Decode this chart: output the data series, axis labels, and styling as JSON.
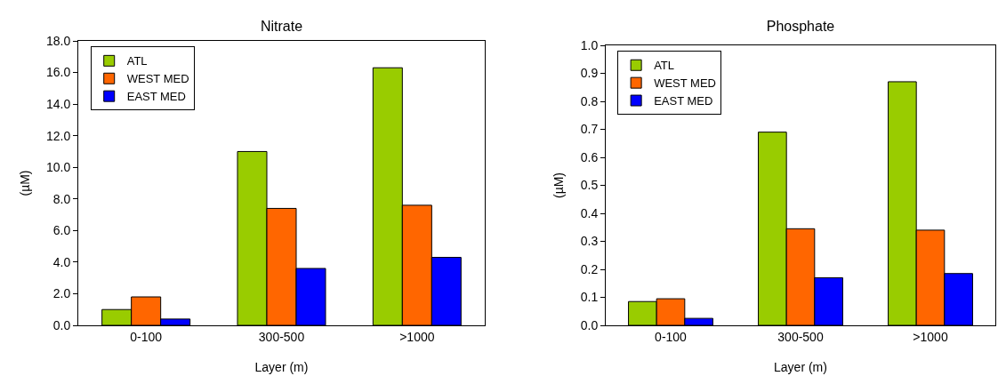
{
  "chart_data": [
    {
      "type": "bar",
      "title": "Nitrate",
      "xlabel": "Layer (m)",
      "ylabel": "(µM)",
      "categories": [
        "0-100",
        "300-500",
        ">1000"
      ],
      "series": [
        {
          "name": "ATL",
          "color": "#99cc00",
          "values": [
            1.0,
            11.0,
            16.3
          ]
        },
        {
          "name": "WEST MED",
          "color": "#ff6600",
          "values": [
            1.8,
            7.4,
            7.6
          ]
        },
        {
          "name": "EAST MED",
          "color": "#0000ff",
          "values": [
            0.4,
            3.6,
            4.3
          ]
        }
      ],
      "ylim": [
        0,
        18
      ],
      "yticks": [
        {
          "value": 0,
          "label": "0.0"
        },
        {
          "value": 2,
          "label": "2.0"
        },
        {
          "value": 4,
          "label": "4.0"
        },
        {
          "value": 6,
          "label": "6.0"
        },
        {
          "value": 8,
          "label": "8.0"
        },
        {
          "value": 10,
          "label": "10.0"
        },
        {
          "value": 12,
          "label": "12.0"
        },
        {
          "value": 14,
          "label": "14.0"
        },
        {
          "value": 16,
          "label": "16.0"
        },
        {
          "value": 18,
          "label": "18.0"
        }
      ],
      "grid": false,
      "legend": "top left"
    },
    {
      "type": "bar",
      "title": "Phosphate",
      "xlabel": "Layer (m)",
      "ylabel": "(µM)",
      "categories": [
        "0-100",
        "300-500",
        ">1000"
      ],
      "series": [
        {
          "name": "ATL",
          "color": "#99cc00",
          "values": [
            0.085,
            0.69,
            0.87
          ]
        },
        {
          "name": "WEST MED",
          "color": "#ff6600",
          "values": [
            0.095,
            0.345,
            0.34
          ]
        },
        {
          "name": "EAST MED",
          "color": "#0000ff",
          "values": [
            0.025,
            0.17,
            0.185
          ]
        }
      ],
      "ylim": [
        0,
        1
      ],
      "yticks": [
        {
          "value": 0,
          "label": "0.0"
        },
        {
          "value": 0.1,
          "label": "0.1"
        },
        {
          "value": 0.2,
          "label": "0.2"
        },
        {
          "value": 0.3,
          "label": "0.3"
        },
        {
          "value": 0.4,
          "label": "0.4"
        },
        {
          "value": 0.5,
          "label": "0.5"
        },
        {
          "value": 0.6,
          "label": "0.6"
        },
        {
          "value": 0.7,
          "label": "0.7"
        },
        {
          "value": 0.8,
          "label": "0.8"
        },
        {
          "value": 0.9,
          "label": "0.9"
        },
        {
          "value": 1,
          "label": "1.0"
        }
      ],
      "grid": false,
      "legend": "top left"
    }
  ]
}
